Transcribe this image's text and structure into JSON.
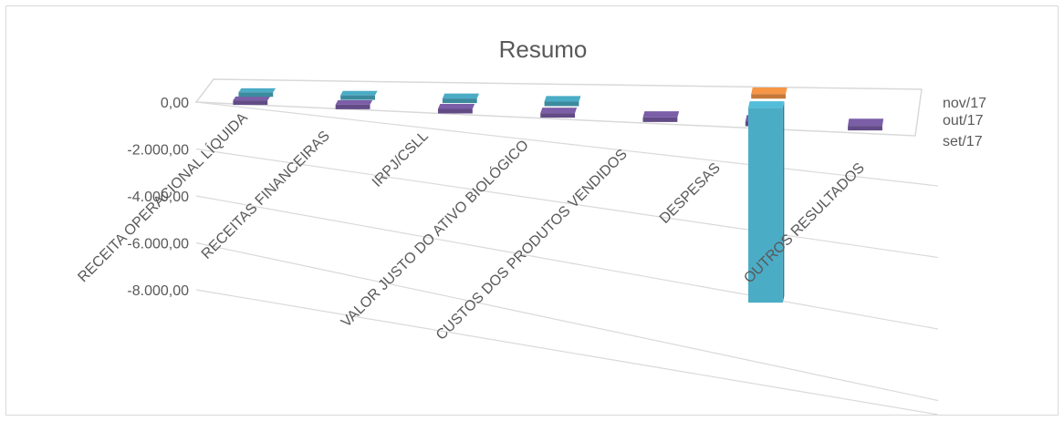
{
  "chart_data": {
    "type": "bar",
    "subtype": "3d-column",
    "title": "Resumo",
    "categories": [
      "RECEITA OPERACIONAL LÍQUIDA",
      "RECEITAS FINANCEIRAS",
      "IRPJ/CSLL",
      "VALOR JUSTO DO ATIVO BIOLÓGICO",
      "CUSTOS DOS PRODUTOS VENDIDOS",
      "DESPESAS",
      "OUTROS RESULTADOS"
    ],
    "series": [
      {
        "name": "set/17",
        "color": "#7b5ea7",
        "values": [
          0,
          0,
          0,
          0,
          0,
          0,
          0
        ]
      },
      {
        "name": "out/17",
        "color": "#4bacc6",
        "values": [
          0,
          0,
          0,
          0,
          null,
          -8300,
          null
        ]
      },
      {
        "name": "nov/17",
        "color": "#f79646",
        "values": [
          null,
          null,
          null,
          null,
          null,
          0,
          null
        ]
      }
    ],
    "y_ticks": [
      "0,00",
      "-2.000,00",
      "-4.000,00",
      "-6.000,00",
      "-8.000,00"
    ],
    "ylim": [
      -8000,
      0
    ],
    "grid": true,
    "legend": "right"
  }
}
